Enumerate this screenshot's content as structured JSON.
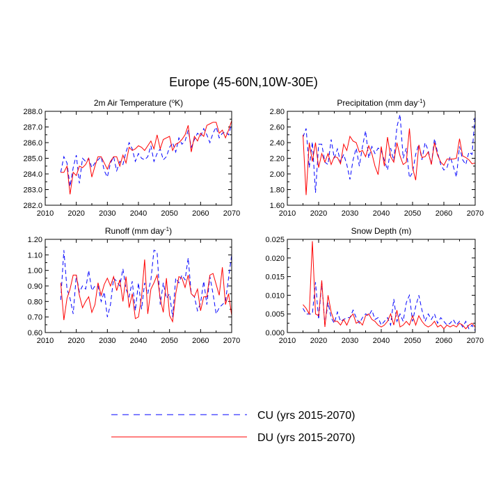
{
  "title": "Europe (45-60N,10W-30E)",
  "legend": {
    "placement": "bottom-center",
    "entries": [
      {
        "series": "CU",
        "label": "CU (yrs 2015-2070)",
        "color": "#0000ff",
        "style": "dashed"
      },
      {
        "series": "DU",
        "label": "DU (yrs 2015-2070)",
        "color": "#ff0000",
        "style": "solid"
      }
    ]
  },
  "chart_data": [
    {
      "type": "line",
      "title": "2m Air Temperature (°K)",
      "title_parts": {
        "main": "2m Air Temperature (",
        "sup": "o",
        "rest": "K)"
      },
      "xlim": [
        2010,
        2070
      ],
      "ylim": [
        282.0,
        288.0
      ],
      "xticks": [
        2010,
        2020,
        2030,
        2040,
        2050,
        2060,
        2070
      ],
      "yticks": [
        282.0,
        283.0,
        284.0,
        285.0,
        286.0,
        287.0,
        288.0
      ],
      "ytick_labels": [
        "282.0",
        "283.0",
        "284.0",
        "285.0",
        "286.0",
        "287.0",
        "288.0"
      ],
      "x": [
        2015,
        2016,
        2017,
        2018,
        2019,
        2020,
        2021,
        2022,
        2023,
        2024,
        2025,
        2026,
        2027,
        2028,
        2029,
        2030,
        2031,
        2032,
        2033,
        2034,
        2035,
        2036,
        2037,
        2038,
        2039,
        2040,
        2041,
        2042,
        2043,
        2044,
        2045,
        2046,
        2047,
        2048,
        2049,
        2050,
        2051,
        2052,
        2053,
        2054,
        2055,
        2056,
        2057,
        2058,
        2059,
        2060,
        2061,
        2062,
        2063,
        2064,
        2065,
        2066,
        2067,
        2068,
        2069,
        2070
      ],
      "series": [
        {
          "name": "CU",
          "values": [
            284.1,
            285.1,
            284.7,
            283.2,
            284.4,
            285.2,
            283.4,
            285.0,
            284.8,
            285.0,
            284.4,
            284.7,
            284.9,
            285.1,
            284.2,
            283.8,
            284.7,
            285.1,
            284.2,
            284.8,
            284.6,
            285.4,
            286.0,
            285.6,
            284.8,
            285.3,
            285.0,
            284.9,
            285.1,
            285.8,
            284.8,
            285.3,
            285.6,
            284.9,
            285.1,
            285.7,
            286.0,
            285.4,
            286.3,
            285.9,
            286.1,
            286.8,
            285.7,
            286.2,
            286.6,
            286.4,
            286.9,
            286.5,
            286.0,
            286.6,
            287.0,
            286.3,
            286.6,
            286.7,
            286.5,
            287.2
          ]
        },
        {
          "name": "DU",
          "values": [
            284.1,
            284.1,
            284.5,
            282.7,
            284.1,
            283.9,
            284.5,
            284.4,
            284.6,
            285.0,
            283.8,
            284.5,
            285.1,
            285.1,
            284.7,
            284.3,
            284.8,
            285.1,
            285.1,
            284.5,
            285.2,
            284.7,
            285.7,
            285.5,
            285.6,
            285.8,
            285.7,
            285.5,
            285.8,
            286.1,
            285.6,
            286.5,
            285.6,
            286.2,
            286.3,
            286.4,
            285.5,
            285.9,
            286.0,
            286.2,
            286.5,
            287.1,
            285.4,
            286.4,
            286.1,
            286.6,
            286.4,
            287.1,
            287.2,
            287.3,
            287.3,
            286.6,
            286.8,
            286.3,
            286.8,
            287.4
          ]
        }
      ]
    },
    {
      "type": "line",
      "title": "Precipitation (mm day-1)",
      "title_parts": {
        "main": "Precipitation (mm day",
        "sup": "-1",
        "rest": ")"
      },
      "xlim": [
        2010,
        2070
      ],
      "ylim": [
        1.6,
        2.8
      ],
      "xticks": [
        2010,
        2020,
        2030,
        2040,
        2050,
        2060,
        2070
      ],
      "yticks": [
        1.6,
        1.8,
        2.0,
        2.2,
        2.4,
        2.6,
        2.8
      ],
      "ytick_labels": [
        "1.60",
        "1.80",
        "2.00",
        "2.20",
        "2.40",
        "2.60",
        "2.80"
      ],
      "x": [
        2015,
        2016,
        2017,
        2018,
        2019,
        2020,
        2021,
        2022,
        2023,
        2024,
        2025,
        2026,
        2027,
        2028,
        2029,
        2030,
        2031,
        2032,
        2033,
        2034,
        2035,
        2036,
        2037,
        2038,
        2039,
        2040,
        2041,
        2042,
        2043,
        2044,
        2045,
        2046,
        2047,
        2048,
        2049,
        2050,
        2051,
        2052,
        2053,
        2054,
        2055,
        2056,
        2057,
        2058,
        2059,
        2060,
        2061,
        2062,
        2063,
        2064,
        2065,
        2066,
        2067,
        2068,
        2069,
        2070
      ],
      "series": [
        {
          "name": "CU",
          "values": [
            2.47,
            2.58,
            2.08,
            2.41,
            1.76,
            2.38,
            2.38,
            2.15,
            2.12,
            2.44,
            2.2,
            2.32,
            2.15,
            2.25,
            2.12,
            1.93,
            2.18,
            2.33,
            2.1,
            2.35,
            2.55,
            2.2,
            2.35,
            2.26,
            2.33,
            2.3,
            2.17,
            2.05,
            2.33,
            2.17,
            2.6,
            2.76,
            2.2,
            2.33,
            1.95,
            2.02,
            2.25,
            2.38,
            2.18,
            2.4,
            2.3,
            2.12,
            2.45,
            2.27,
            2.12,
            2.05,
            2.08,
            2.22,
            2.1,
            1.96,
            2.35,
            2.18,
            2.12,
            2.28,
            2.25,
            2.77
          ]
        },
        {
          "name": "DU",
          "values": [
            2.5,
            1.73,
            2.4,
            2.16,
            2.4,
            2.08,
            2.26,
            2.15,
            2.26,
            2.12,
            2.22,
            2.21,
            2.13,
            2.38,
            2.3,
            2.48,
            2.42,
            2.4,
            2.28,
            2.3,
            2.22,
            2.36,
            2.26,
            2.1,
            1.99,
            2.35,
            2.1,
            2.47,
            2.22,
            2.15,
            2.4,
            2.23,
            2.12,
            2.15,
            2.58,
            2.08,
            1.92,
            2.37,
            2.21,
            2.22,
            2.28,
            2.12,
            2.4,
            2.24,
            2.15,
            2.11,
            2.19,
            2.19,
            2.19,
            2.2,
            2.45,
            2.23,
            2.21,
            2.18,
            2.13,
            2.14
          ]
        }
      ]
    },
    {
      "type": "line",
      "title": "Runoff (mm day-1)",
      "title_parts": {
        "main": "Runoff (mm day",
        "sup": "-1",
        "rest": ")"
      },
      "xlim": [
        2010,
        2070
      ],
      "ylim": [
        0.6,
        1.2
      ],
      "xticks": [
        2010,
        2020,
        2030,
        2040,
        2050,
        2060,
        2070
      ],
      "yticks": [
        0.6,
        0.7,
        0.8,
        0.9,
        1.0,
        1.1,
        1.2
      ],
      "ytick_labels": [
        "0.60",
        "0.70",
        "0.80",
        "0.90",
        "1.00",
        "1.10",
        "1.20"
      ],
      "x": [
        2015,
        2016,
        2017,
        2018,
        2019,
        2020,
        2021,
        2022,
        2023,
        2024,
        2025,
        2026,
        2027,
        2028,
        2029,
        2030,
        2031,
        2032,
        2033,
        2034,
        2035,
        2036,
        2037,
        2038,
        2039,
        2040,
        2041,
        2042,
        2043,
        2044,
        2045,
        2046,
        2047,
        2048,
        2049,
        2050,
        2051,
        2052,
        2053,
        2054,
        2055,
        2056,
        2057,
        2058,
        2059,
        2060,
        2061,
        2062,
        2063,
        2064,
        2065,
        2066,
        2067,
        2068,
        2069,
        2070
      ],
      "series": [
        {
          "name": "CU",
          "values": [
            0.81,
            1.13,
            0.88,
            0.82,
            0.72,
            0.97,
            0.86,
            0.9,
            0.88,
            1.0,
            0.87,
            0.9,
            0.9,
            0.8,
            0.86,
            0.7,
            0.78,
            0.95,
            0.93,
            0.9,
            1.01,
            0.88,
            0.83,
            0.93,
            0.74,
            0.92,
            0.75,
            0.92,
            0.85,
            0.94,
            1.13,
            1.12,
            0.78,
            0.92,
            0.82,
            0.85,
            0.7,
            0.95,
            0.92,
            0.97,
            0.94,
            1.08,
            0.85,
            0.83,
            0.74,
            0.79,
            0.93,
            0.78,
            0.96,
            0.85,
            0.72,
            0.76,
            0.78,
            0.8,
            0.95,
            1.1
          ]
        },
        {
          "name": "DU",
          "values": [
            0.92,
            0.68,
            0.82,
            0.88,
            0.97,
            0.97,
            0.84,
            0.76,
            0.8,
            0.83,
            0.73,
            0.78,
            0.92,
            0.84,
            0.91,
            0.95,
            0.9,
            0.96,
            0.87,
            0.94,
            0.8,
            0.96,
            0.76,
            0.85,
            0.69,
            0.7,
            0.83,
            1.07,
            0.72,
            0.88,
            0.92,
            0.97,
            0.82,
            0.73,
            0.95,
            0.71,
            0.67,
            0.85,
            0.96,
            0.95,
            0.89,
            0.97,
            0.85,
            0.83,
            0.88,
            0.74,
            0.83,
            0.83,
            0.97,
            0.98,
            0.91,
            0.84,
            1.02,
            0.78,
            0.85,
            0.71
          ]
        }
      ]
    },
    {
      "type": "line",
      "title": "Snow Depth (m)",
      "title_parts": {
        "main": "Snow Depth (m)",
        "sup": "",
        "rest": ""
      },
      "xlim": [
        2010,
        2070
      ],
      "ylim": [
        0.0,
        0.025
      ],
      "xticks": [
        2010,
        2020,
        2030,
        2040,
        2050,
        2060,
        2070
      ],
      "yticks": [
        0.0,
        0.005,
        0.01,
        0.015,
        0.02,
        0.025
      ],
      "ytick_labels": [
        "0.000",
        "0.005",
        "0.010",
        "0.015",
        "0.020",
        "0.025"
      ],
      "x": [
        2015,
        2016,
        2017,
        2018,
        2019,
        2020,
        2021,
        2022,
        2023,
        2024,
        2025,
        2026,
        2027,
        2028,
        2029,
        2030,
        2031,
        2032,
        2033,
        2034,
        2035,
        2036,
        2037,
        2038,
        2039,
        2040,
        2041,
        2042,
        2043,
        2044,
        2045,
        2046,
        2047,
        2048,
        2049,
        2050,
        2051,
        2052,
        2053,
        2054,
        2055,
        2056,
        2057,
        2058,
        2059,
        2060,
        2061,
        2062,
        2063,
        2064,
        2065,
        2066,
        2067,
        2068,
        2069,
        2070
      ],
      "series": [
        {
          "name": "CU",
          "values": [
            0.0065,
            0.005,
            0.005,
            0.005,
            0.0135,
            0.0035,
            0.0135,
            0.002,
            0.008,
            0.004,
            0.0025,
            0.0055,
            0.003,
            0.0035,
            0.004,
            0.004,
            0.006,
            0.004,
            0.0025,
            0.004,
            0.005,
            0.0045,
            0.006,
            0.0035,
            0.004,
            0.002,
            0.003,
            0.004,
            0.002,
            0.009,
            0.003,
            0.005,
            0.003,
            0.008,
            0.01,
            0.003,
            0.007,
            0.01,
            0.006,
            0.003,
            0.005,
            0.0035,
            0.005,
            0.0025,
            0.004,
            0.003,
            0.002,
            0.0025,
            0.0035,
            0.002,
            0.003,
            0.0015,
            0.003,
            0.001,
            0.002,
            0.0005
          ]
        },
        {
          "name": "DU",
          "values": [
            0.0075,
            0.0065,
            0.005,
            0.0245,
            0.005,
            0.0045,
            0.014,
            0.0015,
            0.01,
            0.0055,
            0.003,
            0.003,
            0.002,
            0.0035,
            0.002,
            0.004,
            0.005,
            0.0025,
            0.003,
            0.002,
            0.0045,
            0.005,
            0.0035,
            0.003,
            0.002,
            0.0015,
            0.002,
            0.003,
            0.005,
            0.002,
            0.006,
            0.0015,
            0.002,
            0.003,
            0.002,
            0.0045,
            0.002,
            0.0045,
            0.003,
            0.002,
            0.0015,
            0.002,
            0.003,
            0.0015,
            0.002,
            0.001,
            0.002,
            0.0015,
            0.002,
            0.0015,
            0.0025,
            0.002,
            0.001,
            0.002,
            0.0025,
            0.0015
          ]
        }
      ]
    }
  ]
}
